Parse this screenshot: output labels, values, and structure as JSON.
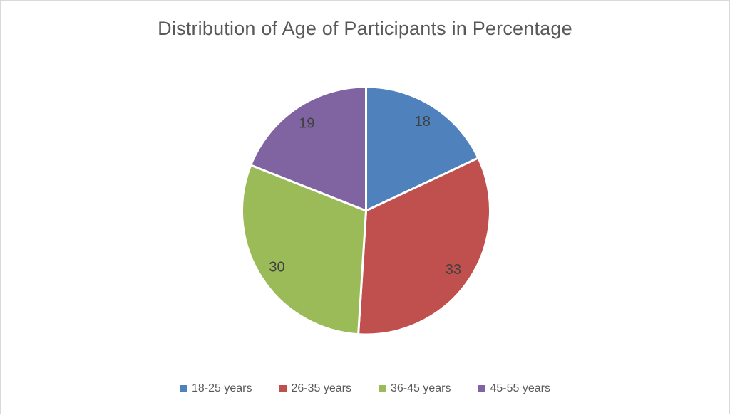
{
  "chart_data": {
    "type": "pie",
    "title": "Distribution of Age of Participants in Percentage",
    "categories": [
      "18-25 years",
      "26-35 years",
      "36-45 years",
      "45-55 years"
    ],
    "values": [
      18,
      33,
      30,
      19
    ],
    "data_labels": [
      "18",
      "33",
      "30",
      "19"
    ],
    "slice_colors": [
      "#4F81BD",
      "#C0504D",
      "#9BBB59",
      "#8064A2"
    ],
    "units": "percent",
    "start_angle_deg": 0,
    "direction": "clockwise",
    "legend_position": "bottom",
    "slice_separator_color": "#FFFFFF"
  },
  "colors": {
    "title_text": "#595959",
    "data_label_text": "#404040",
    "legend_text": "#595959",
    "background": "#FFFFFF",
    "frame_border": "#D9D9D9"
  }
}
